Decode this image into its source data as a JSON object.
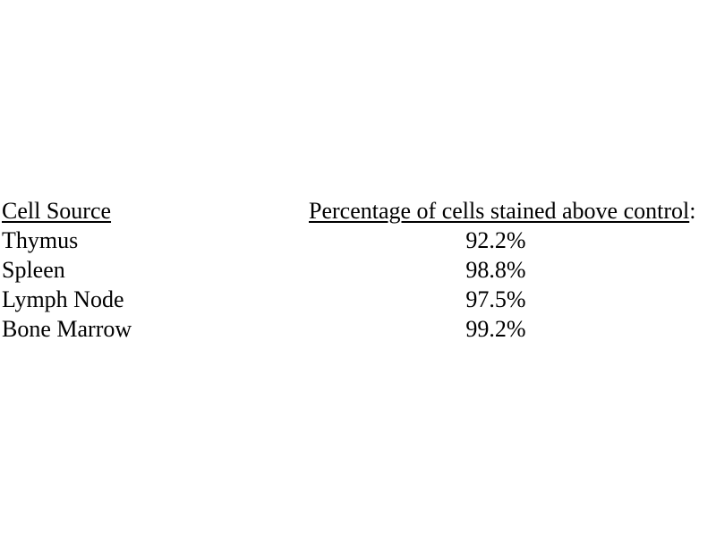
{
  "page": {
    "background": "#ffffff",
    "text_color": "#000000"
  },
  "table": {
    "columns": [
      {
        "header": "Cell Source"
      },
      {
        "header": "Percentage of cells stained above control",
        "header_suffix": ":"
      }
    ],
    "rows": [
      {
        "cell_source": "Thymus",
        "percentage": "92.2%"
      },
      {
        "cell_source": "Spleen",
        "percentage": "98.8%"
      },
      {
        "cell_source": "Lymph Node",
        "percentage": "97.5%"
      },
      {
        "cell_source": "Bone Marrow",
        "percentage": "99.2%"
      }
    ]
  }
}
